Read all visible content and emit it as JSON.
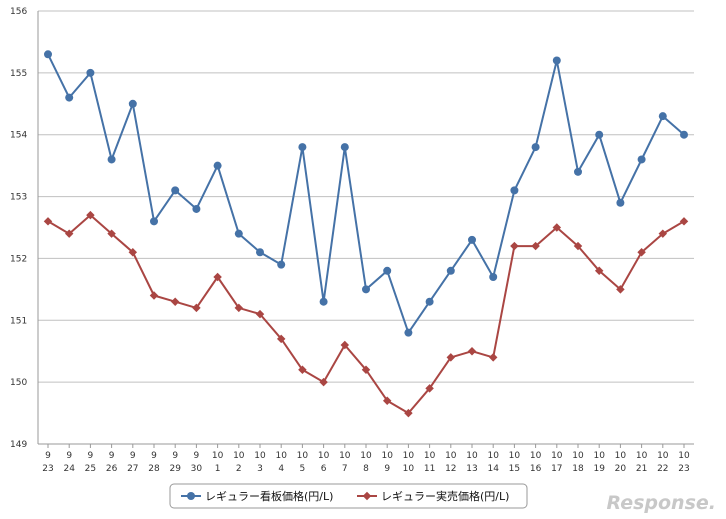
{
  "chart_data": {
    "type": "line",
    "x_month": [
      "9",
      "9",
      "9",
      "9",
      "9",
      "9",
      "9",
      "9",
      "10",
      "10",
      "10",
      "10",
      "10",
      "10",
      "10",
      "10",
      "10",
      "10",
      "10",
      "10",
      "10",
      "10",
      "10",
      "10",
      "10",
      "10",
      "10",
      "10",
      "10",
      "10",
      "10"
    ],
    "x_day": [
      "23",
      "24",
      "25",
      "26",
      "27",
      "28",
      "29",
      "30",
      "1",
      "2",
      "3",
      "4",
      "5",
      "6",
      "7",
      "8",
      "9",
      "10",
      "11",
      "12",
      "13",
      "14",
      "15",
      "16",
      "17",
      "18",
      "19",
      "20",
      "21",
      "22",
      "23"
    ],
    "series": [
      {
        "name": "レギュラー看板価格(円/L)",
        "color": "#4572a7",
        "marker": "circle",
        "values": [
          155.3,
          154.6,
          155.0,
          153.6,
          154.5,
          152.6,
          153.1,
          152.8,
          153.5,
          152.4,
          152.1,
          151.9,
          153.8,
          151.3,
          153.8,
          151.5,
          151.8,
          150.8,
          151.3,
          151.8,
          152.3,
          151.7,
          153.1,
          153.8,
          155.2,
          153.4,
          154.0,
          152.9,
          153.6,
          154.3,
          154.0
        ]
      },
      {
        "name": "レギュラー実売価格(円/L)",
        "color": "#aa4643",
        "marker": "diamond",
        "values": [
          152.6,
          152.4,
          152.7,
          152.4,
          152.1,
          151.4,
          151.3,
          151.2,
          151.7,
          151.2,
          151.1,
          150.7,
          150.2,
          150.0,
          150.6,
          150.2,
          149.7,
          149.5,
          149.9,
          150.4,
          150.5,
          150.4,
          152.2,
          152.2,
          152.5,
          152.2,
          151.8,
          151.5,
          152.1,
          152.4,
          152.6
        ]
      }
    ],
    "ylim": [
      149,
      156
    ],
    "yticks": [
      "149",
      "150",
      "151",
      "152",
      "153",
      "154",
      "155",
      "156"
    ],
    "grid": true,
    "legend_position": "bottom"
  },
  "watermark": "Response."
}
